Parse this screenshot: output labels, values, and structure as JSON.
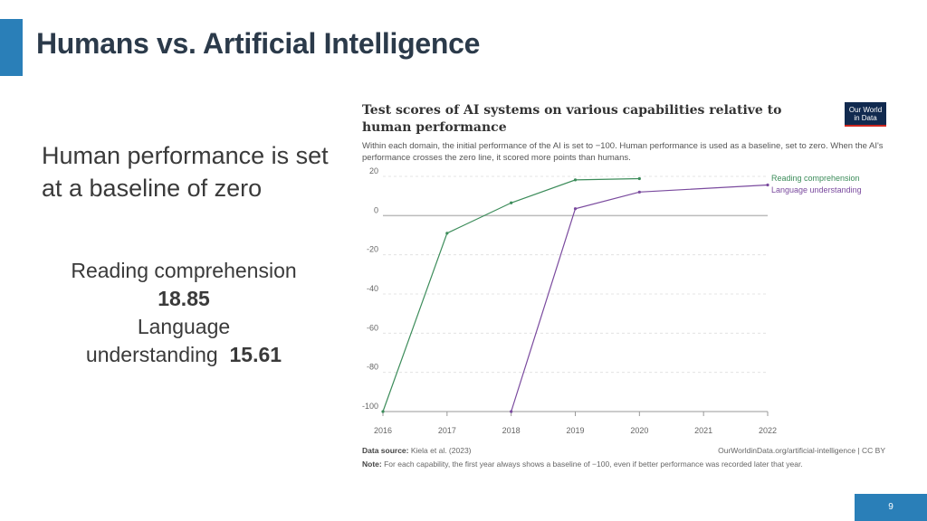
{
  "slide": {
    "title": "Humans vs. Artificial Intelligence",
    "baseline_text": "Human performance is set at a baseline of zero",
    "stats": {
      "reading_label": "Reading comprehension",
      "reading_value": "18.85",
      "language_label": "Language",
      "language_label2": "understanding",
      "language_value": "15.61"
    },
    "page_number": "9"
  },
  "chart_header": {
    "title": "Test scores of AI systems on various capabilities relative to human performance",
    "subtitle": "Within each domain, the initial performance of the AI is set to −100. Human performance is used as a baseline, set to zero. When the AI's performance crosses the zero line, it scored more points than humans.",
    "logo_line1": "Our World",
    "logo_line2": "in Data"
  },
  "footer": {
    "source_label": "Data source:",
    "source_text": "Kiela et al. (2023)",
    "url": "OurWorldinData.org/artificial-intelligence | CC BY",
    "note_label": "Note:",
    "note_text": "For each capability, the first year always shows a baseline of −100, even if better performance was recorded later that year."
  },
  "chart_data": {
    "type": "line",
    "title": "Test scores of AI systems on various capabilities relative to human performance",
    "xlabel": "",
    "ylabel": "",
    "xlim": [
      2016,
      2022
    ],
    "ylim": [
      -100,
      20
    ],
    "x_ticks": [
      "2016",
      "2017",
      "2018",
      "2019",
      "2020",
      "2021",
      "2022"
    ],
    "y_ticks": [
      "20",
      "0",
      "-20",
      "-40",
      "-60",
      "-80",
      "-100"
    ],
    "legend": "right",
    "series": [
      {
        "name": "Reading comprehension",
        "color": "#3c8c5a",
        "x": [
          2016,
          2017,
          2018,
          2019,
          2020
        ],
        "values": [
          -100,
          -9,
          6.5,
          18.2,
          18.85
        ]
      },
      {
        "name": "Language understanding",
        "color": "#7a4a9e",
        "x": [
          2018,
          2019,
          2020,
          2022
        ],
        "values": [
          -100,
          3.5,
          12,
          15.61
        ]
      }
    ]
  }
}
